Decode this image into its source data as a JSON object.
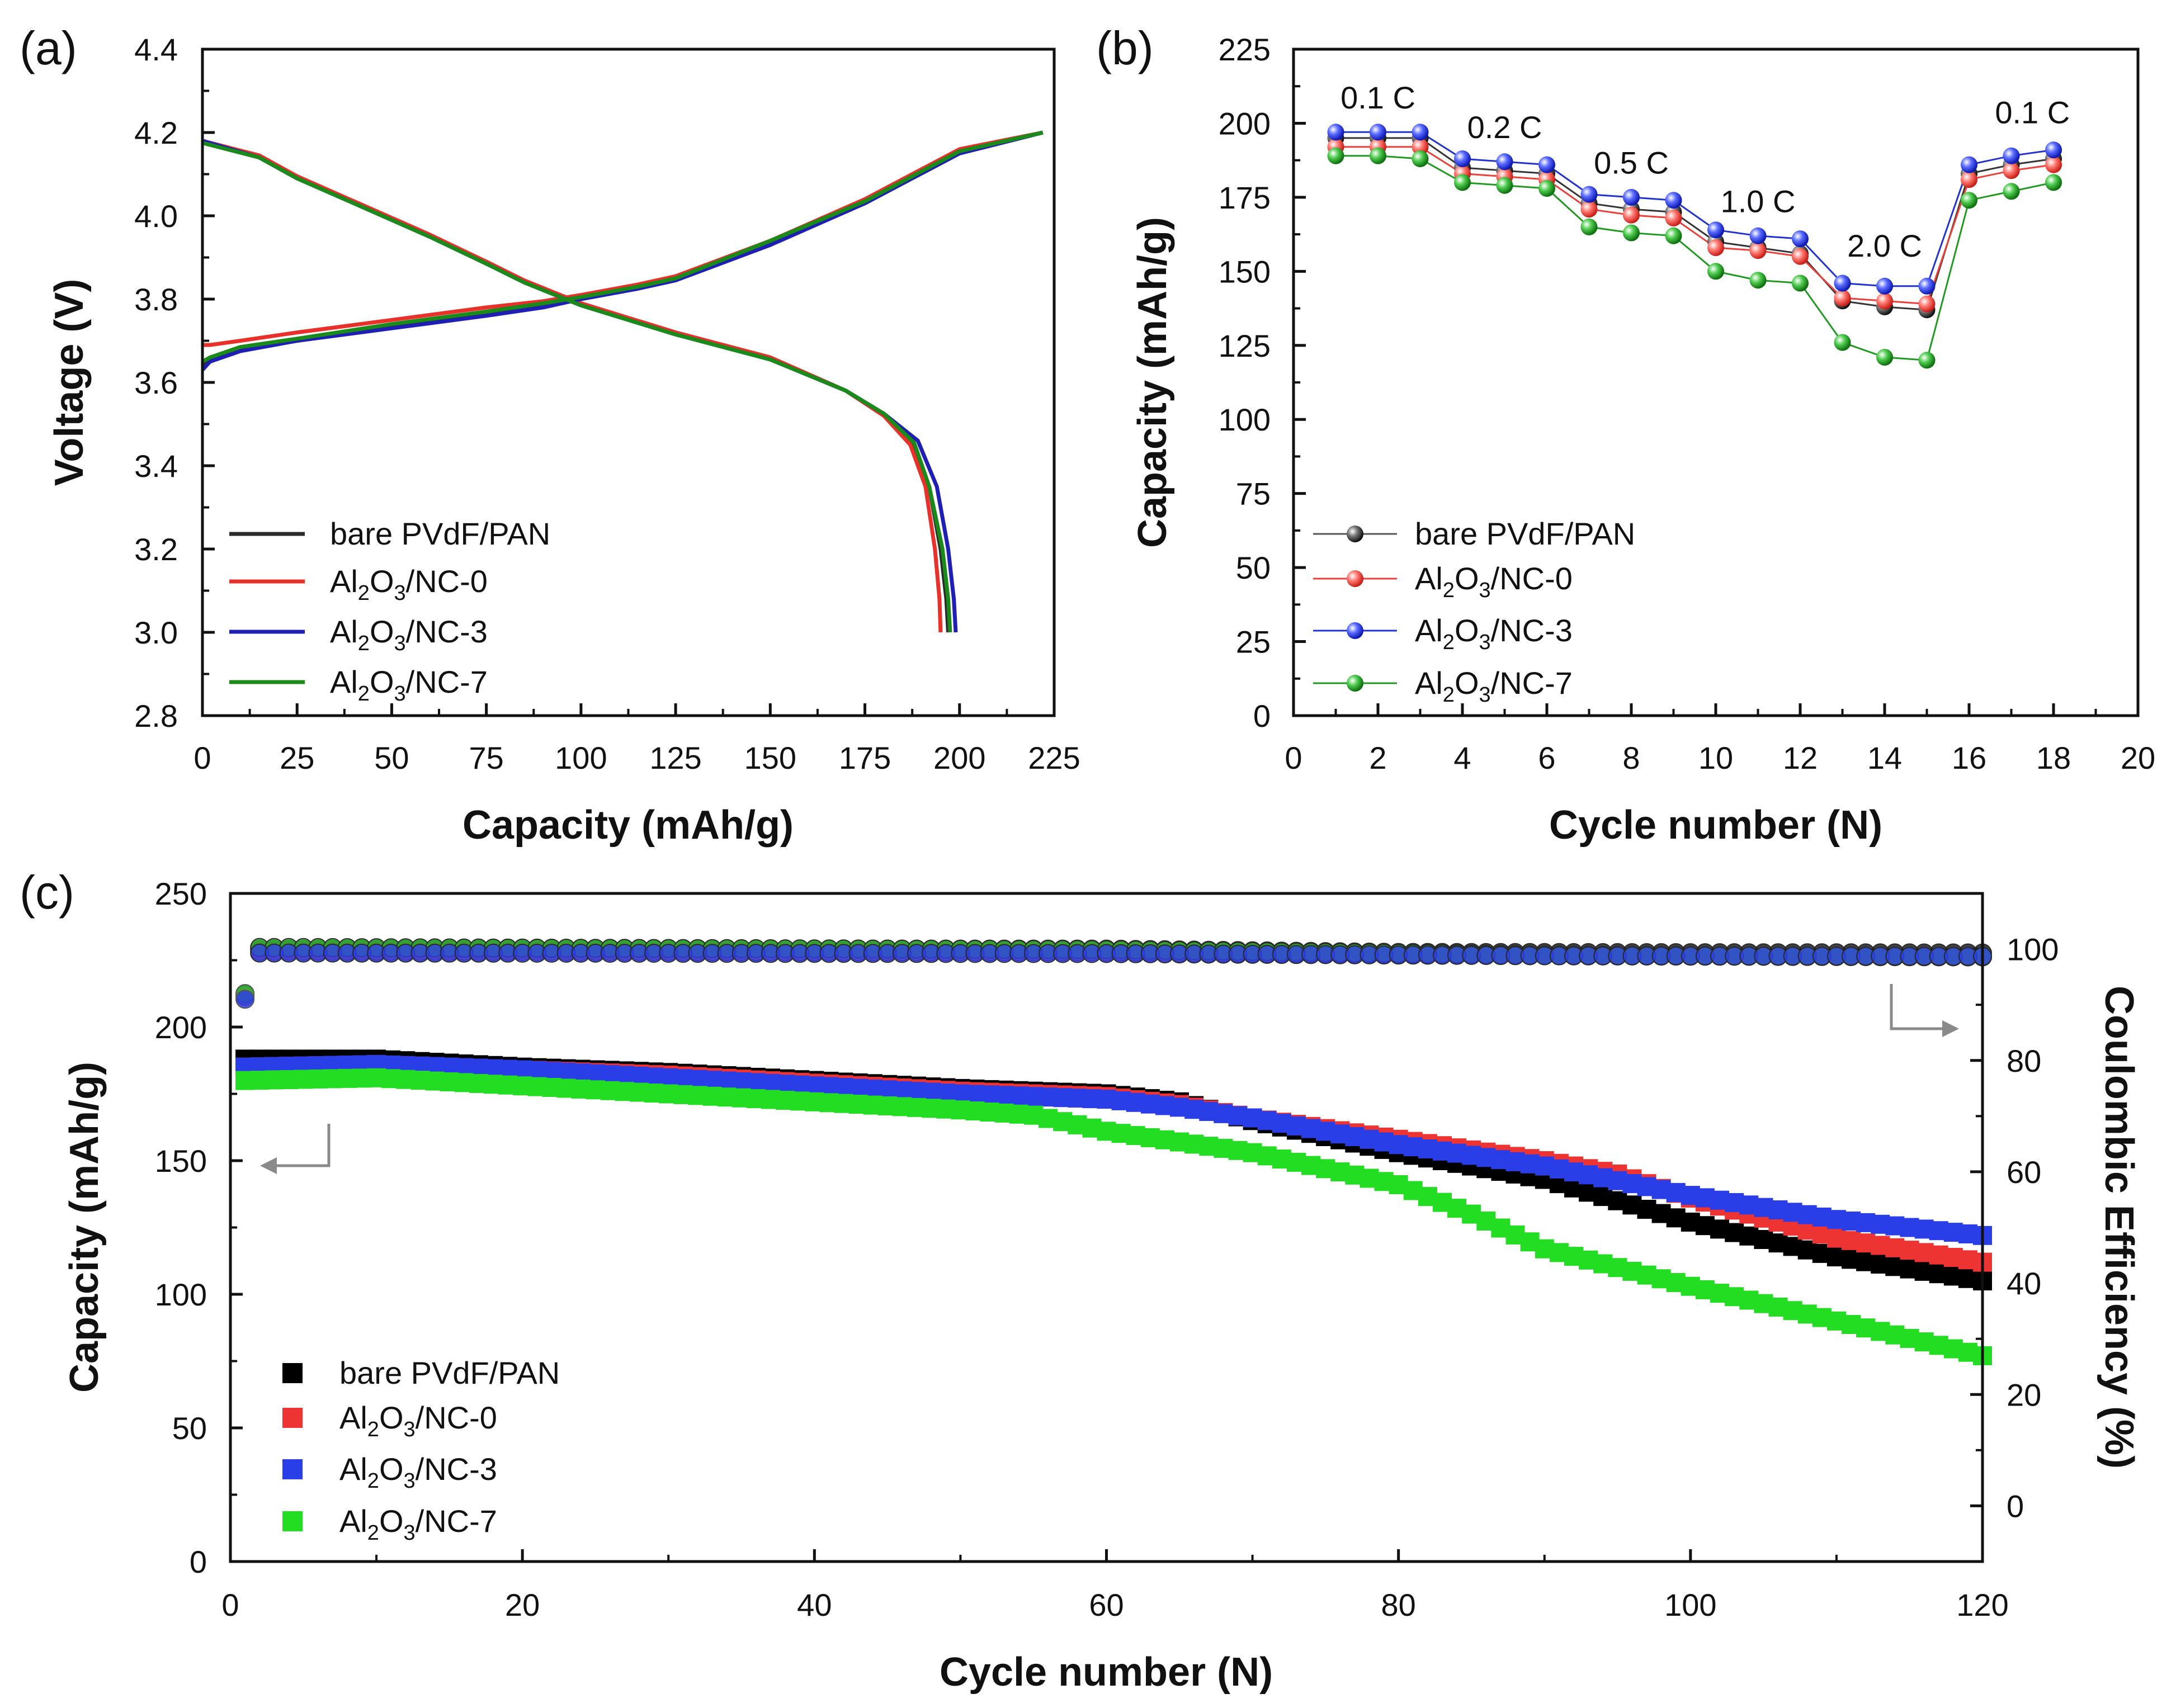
{
  "figure": {
    "panels": {
      "a": {
        "label": "(a)"
      },
      "b": {
        "label": "(b)"
      },
      "c": {
        "label": "(c)"
      }
    },
    "legend": {
      "bare": "bare PVdF/PAN",
      "nc0": {
        "base": "Al",
        "sub1": "2",
        "mid": "O",
        "sub2": "3",
        "rest": "/NC-0"
      },
      "nc3": {
        "base": "Al",
        "sub1": "2",
        "mid": "O",
        "sub2": "3",
        "rest": "/NC-3"
      },
      "nc7": {
        "base": "Al",
        "sub1": "2",
        "mid": "O",
        "sub2": "3",
        "rest": "/NC-7"
      }
    }
  },
  "chart_data": [
    {
      "id": "a",
      "type": "line",
      "xlabel": "Capacity (mAh/g)",
      "ylabel": "Voltage (V)",
      "xlim": [
        0,
        225
      ],
      "ylim": [
        2.8,
        4.4
      ],
      "xticks": [
        "0",
        "25",
        "50",
        "75",
        "100",
        "125",
        "150",
        "175",
        "200",
        "225"
      ],
      "yticks": [
        "2.8",
        "3.0",
        "3.2",
        "3.4",
        "3.6",
        "3.8",
        "4.0",
        "4.2",
        "4.4"
      ],
      "series": [
        {
          "name": "bare PVdF/PAN",
          "color": "#2b2b2b",
          "charge": [
            [
              0,
              3.64
            ],
            [
              2,
              3.655
            ],
            [
              10,
              3.68
            ],
            [
              25,
              3.7
            ],
            [
              50,
              3.735
            ],
            [
              75,
              3.765
            ],
            [
              90,
              3.785
            ],
            [
              100,
              3.805
            ],
            [
              115,
              3.83
            ],
            [
              125,
              3.85
            ],
            [
              150,
              3.935
            ],
            [
              175,
              4.03
            ],
            [
              200,
              4.15
            ],
            [
              222,
              4.2
            ]
          ],
          "discharge": [
            [
              0,
              4.18
            ],
            [
              15,
              4.14
            ],
            [
              25,
              4.09
            ],
            [
              40,
              4.03
            ],
            [
              60,
              3.95
            ],
            [
              75,
              3.89
            ],
            [
              85,
              3.84
            ],
            [
              100,
              3.79
            ],
            [
              125,
              3.72
            ],
            [
              150,
              3.66
            ],
            [
              170,
              3.58
            ],
            [
              180,
              3.52
            ],
            [
              188,
              3.45
            ],
            [
              192,
              3.35
            ],
            [
              195,
              3.2
            ],
            [
              196.5,
              3.08
            ],
            [
              197,
              3.0
            ]
          ]
        },
        {
          "name": "Al2O3/NC-0",
          "color": "#e8312a",
          "charge": [
            [
              0,
              3.69
            ],
            [
              2,
              3.69
            ],
            [
              10,
              3.7
            ],
            [
              25,
              3.72
            ],
            [
              50,
              3.75
            ],
            [
              75,
              3.78
            ],
            [
              90,
              3.795
            ],
            [
              100,
              3.81
            ],
            [
              115,
              3.835
            ],
            [
              125,
              3.855
            ],
            [
              150,
              3.94
            ],
            [
              175,
              4.04
            ],
            [
              200,
              4.16
            ],
            [
              222,
              4.2
            ]
          ],
          "discharge": [
            [
              0,
              4.18
            ],
            [
              15,
              4.145
            ],
            [
              25,
              4.095
            ],
            [
              40,
              4.035
            ],
            [
              60,
              3.955
            ],
            [
              75,
              3.89
            ],
            [
              85,
              3.845
            ],
            [
              100,
              3.79
            ],
            [
              125,
              3.72
            ],
            [
              150,
              3.66
            ],
            [
              170,
              3.58
            ],
            [
              180,
              3.52
            ],
            [
              187,
              3.45
            ],
            [
              191,
              3.35
            ],
            [
              193.5,
              3.2
            ],
            [
              194.7,
              3.08
            ],
            [
              195,
              3.0
            ]
          ]
        },
        {
          "name": "Al2O3/NC-3",
          "color": "#1f1fb4",
          "charge": [
            [
              0,
              3.63
            ],
            [
              2,
              3.65
            ],
            [
              10,
              3.675
            ],
            [
              25,
              3.7
            ],
            [
              50,
              3.73
            ],
            [
              75,
              3.76
            ],
            [
              90,
              3.78
            ],
            [
              100,
              3.8
            ],
            [
              115,
              3.825
            ],
            [
              125,
              3.845
            ],
            [
              150,
              3.93
            ],
            [
              175,
              4.03
            ],
            [
              200,
              4.15
            ],
            [
              222,
              4.2
            ]
          ],
          "discharge": [
            [
              0,
              4.18
            ],
            [
              15,
              4.14
            ],
            [
              25,
              4.09
            ],
            [
              40,
              4.03
            ],
            [
              60,
              3.95
            ],
            [
              75,
              3.885
            ],
            [
              85,
              3.84
            ],
            [
              100,
              3.785
            ],
            [
              125,
              3.715
            ],
            [
              150,
              3.655
            ],
            [
              170,
              3.58
            ],
            [
              180,
              3.525
            ],
            [
              189,
              3.46
            ],
            [
              194,
              3.35
            ],
            [
              197,
              3.2
            ],
            [
              198.5,
              3.08
            ],
            [
              199,
              3.0
            ]
          ]
        },
        {
          "name": "Al2O3/NC-7",
          "color": "#1a8a1a",
          "charge": [
            [
              0,
              3.65
            ],
            [
              2,
              3.66
            ],
            [
              10,
              3.685
            ],
            [
              25,
              3.705
            ],
            [
              50,
              3.74
            ],
            [
              75,
              3.77
            ],
            [
              90,
              3.79
            ],
            [
              100,
              3.805
            ],
            [
              115,
              3.83
            ],
            [
              125,
              3.85
            ],
            [
              150,
              3.94
            ],
            [
              175,
              4.035
            ],
            [
              200,
              4.155
            ],
            [
              222,
              4.2
            ]
          ],
          "discharge": [
            [
              0,
              4.175
            ],
            [
              15,
              4.14
            ],
            [
              25,
              4.09
            ],
            [
              40,
              4.03
            ],
            [
              60,
              3.95
            ],
            [
              75,
              3.885
            ],
            [
              85,
              3.84
            ],
            [
              100,
              3.785
            ],
            [
              125,
              3.715
            ],
            [
              150,
              3.655
            ],
            [
              170,
              3.58
            ],
            [
              180,
              3.525
            ],
            [
              188,
              3.455
            ],
            [
              192,
              3.35
            ],
            [
              195.5,
              3.2
            ],
            [
              197,
              3.08
            ],
            [
              197.5,
              3.0
            ]
          ]
        }
      ],
      "legend_position": "bottom-left"
    },
    {
      "id": "b",
      "type": "line",
      "xlabel": "Cycle number (N)",
      "ylabel": "Capacity (mAh/g)",
      "xlim": [
        0,
        20
      ],
      "ylim": [
        0,
        225
      ],
      "xticks": [
        "0",
        "2",
        "4",
        "6",
        "8",
        "10",
        "12",
        "14",
        "16",
        "18",
        "20"
      ],
      "yticks": [
        "0",
        "25",
        "50",
        "75",
        "100",
        "125",
        "150",
        "175",
        "200",
        "225"
      ],
      "x": [
        1,
        2,
        3,
        4,
        5,
        6,
        7,
        8,
        9,
        10,
        11,
        12,
        13,
        14,
        15,
        16,
        17,
        18
      ],
      "series": [
        {
          "name": "bare PVdF/PAN",
          "color": "#333333",
          "values": [
            195,
            195,
            195,
            185,
            184,
            183,
            173,
            171,
            170,
            160,
            158,
            156,
            140,
            138,
            137,
            183,
            186,
            188
          ]
        },
        {
          "name": "Al2O3/NC-0",
          "color": "#e8403a",
          "values": [
            192,
            192,
            192,
            183,
            182,
            181,
            171,
            169,
            168,
            158,
            157,
            155,
            141,
            140,
            139,
            181,
            184,
            186
          ]
        },
        {
          "name": "Al2O3/NC-3",
          "color": "#2233cc",
          "values": [
            197,
            197,
            197,
            188,
            187,
            186,
            176,
            175,
            174,
            164,
            162,
            161,
            146,
            145,
            145,
            186,
            189,
            191
          ]
        },
        {
          "name": "Al2O3/NC-7",
          "color": "#229922",
          "values": [
            189,
            189,
            188,
            180,
            179,
            178,
            165,
            163,
            162,
            150,
            147,
            146,
            126,
            121,
            120,
            174,
            177,
            180
          ]
        }
      ],
      "rate_labels": [
        {
          "text": "0.1 C",
          "x": 2,
          "y": 205
        },
        {
          "text": "0.2 C",
          "x": 5,
          "y": 195
        },
        {
          "text": "0.5 C",
          "x": 8,
          "y": 183
        },
        {
          "text": "1.0 C",
          "x": 11,
          "y": 170
        },
        {
          "text": "2.0 C",
          "x": 14,
          "y": 155
        },
        {
          "text": "0.1 C",
          "x": 17.5,
          "y": 200
        }
      ],
      "legend_position": "bottom-left"
    },
    {
      "id": "c",
      "type": "scatter",
      "xlabel": "Cycle number (N)",
      "ylabel": "Capacity (mAh/g)",
      "y2label": "Coulombic Efficiency (%)",
      "xlim": [
        0,
        120
      ],
      "ylim": [
        0,
        250
      ],
      "y2lim": [
        -10,
        110
      ],
      "xticks": [
        "0",
        "20",
        "40",
        "60",
        "80",
        "100",
        "120"
      ],
      "yticks": [
        "0",
        "50",
        "100",
        "150",
        "200",
        "250"
      ],
      "y2ticks": [
        "0",
        "20",
        "40",
        "60",
        "80",
        "100"
      ],
      "capacity_series": [
        {
          "name": "bare PVdF/PAN",
          "color": "#000000",
          "points": [
            [
              1,
              188
            ],
            [
              10,
              188
            ],
            [
              20,
              185
            ],
            [
              30,
              183
            ],
            [
              40,
              180
            ],
            [
              50,
              177
            ],
            [
              60,
              175
            ],
            [
              65,
              172
            ],
            [
              70,
              165
            ],
            [
              80,
              153
            ],
            [
              90,
              143
            ],
            [
              100,
              127
            ],
            [
              110,
              114
            ],
            [
              120,
              105
            ]
          ]
        },
        {
          "name": "Al2O3/NC-0",
          "color": "#ee3333",
          "points": [
            [
              1,
              185
            ],
            [
              10,
              186
            ],
            [
              20,
              184
            ],
            [
              30,
              182
            ],
            [
              40,
              179
            ],
            [
              50,
              176
            ],
            [
              60,
              174
            ],
            [
              65,
              171
            ],
            [
              70,
              166
            ],
            [
              80,
              158
            ],
            [
              90,
              150
            ],
            [
              95,
              145
            ],
            [
              100,
              136
            ],
            [
              110,
              121
            ],
            [
              120,
              112
            ]
          ]
        },
        {
          "name": "Al2O3/NC-3",
          "color": "#2a3ee8",
          "points": [
            [
              1,
              185
            ],
            [
              10,
              186
            ],
            [
              20,
              184
            ],
            [
              30,
              181
            ],
            [
              40,
              178
            ],
            [
              50,
              175
            ],
            [
              60,
              173
            ],
            [
              65,
              170
            ],
            [
              70,
              166
            ],
            [
              80,
              156
            ],
            [
              90,
              148
            ],
            [
              100,
              137
            ],
            [
              110,
              128
            ],
            [
              120,
              122
            ]
          ]
        },
        {
          "name": "Al2O3/NC-7",
          "color": "#22dd22",
          "points": [
            [
              1,
              180
            ],
            [
              10,
              181
            ],
            [
              20,
              178
            ],
            [
              30,
              175
            ],
            [
              40,
              172
            ],
            [
              50,
              169
            ],
            [
              55,
              167
            ],
            [
              60,
              161
            ],
            [
              70,
              153
            ],
            [
              80,
              141
            ],
            [
              85,
              130
            ],
            [
              90,
              117
            ],
            [
              100,
              103
            ],
            [
              110,
              90
            ],
            [
              120,
              77
            ]
          ]
        }
      ],
      "ce_series": [
        {
          "name": "bare PVdF/PAN",
          "color": "#111111",
          "first": 92,
          "points": [
            [
              2,
              100
            ],
            [
              60,
              100
            ],
            [
              80,
              99.4
            ],
            [
              120,
              99.3
            ]
          ]
        },
        {
          "name": "Al2O3/NC-0",
          "color": "#e84040",
          "first": 91.5,
          "points": [
            [
              2,
              99.6
            ],
            [
              60,
              99.5
            ],
            [
              90,
              98.8
            ],
            [
              120,
              98.6
            ]
          ]
        },
        {
          "name": "Al2O3/NC-7",
          "color": "#33bb33",
          "first": 92,
          "points": [
            [
              2,
              100.3
            ],
            [
              60,
              99.9
            ],
            [
              90,
              98.9
            ],
            [
              120,
              98.6
            ]
          ]
        },
        {
          "name": "Al2O3/NC-3",
          "color": "#2a3ee8",
          "first": 91,
          "points": [
            [
              2,
              99.3
            ],
            [
              60,
              99.2
            ],
            [
              90,
              98.8
            ],
            [
              120,
              98.7
            ]
          ]
        }
      ],
      "legend_position": "bottom-left"
    }
  ]
}
